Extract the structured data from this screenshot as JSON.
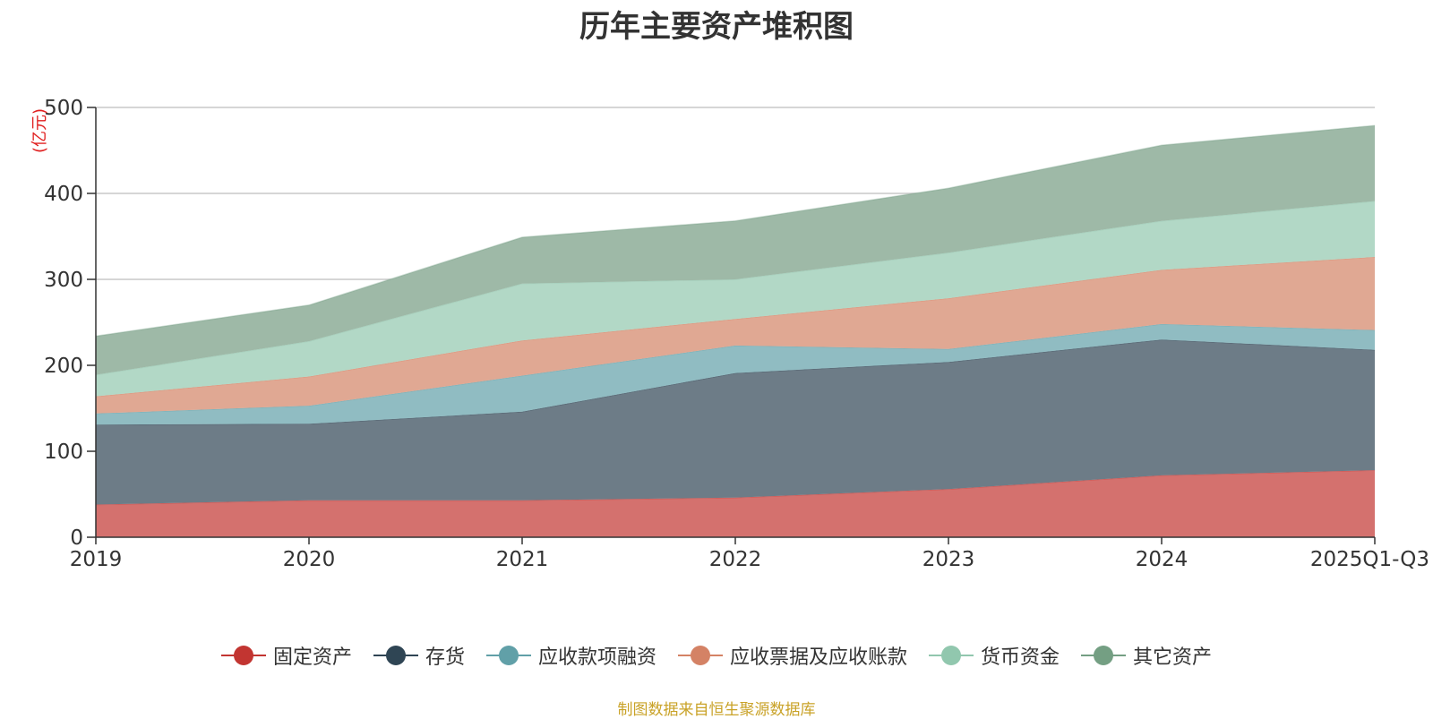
{
  "chart_data": {
    "type": "area",
    "stacked": true,
    "title": "历年主要资产堆积图",
    "unit_label": "(亿元)",
    "categories": [
      "2019",
      "2020",
      "2021",
      "2022",
      "2023",
      "2024",
      "2025Q1-Q3"
    ],
    "ylim": [
      0,
      500
    ],
    "yticks": [
      0,
      100,
      200,
      300,
      400,
      500
    ],
    "grid": true,
    "legend_position": "bottom",
    "series": [
      {
        "name": "固定资产",
        "values": [
          38,
          43,
          43,
          46,
          56,
          72,
          78
        ],
        "color": "#c23531",
        "fill": "#d4716e"
      },
      {
        "name": "存货",
        "values": [
          93,
          89,
          103,
          145,
          148,
          158,
          140
        ],
        "color": "#2f4554",
        "fill": "#6d7c87"
      },
      {
        "name": "应收款项融资",
        "values": [
          13,
          21,
          42,
          32,
          15,
          18,
          23
        ],
        "color": "#61a0a8",
        "fill": "#90bcc2"
      },
      {
        "name": "应收票据及应收账款",
        "values": [
          20,
          34,
          41,
          31,
          59,
          63,
          85
        ],
        "color": "#d48265",
        "fill": "#e0a893"
      },
      {
        "name": "货币资金",
        "values": [
          25,
          41,
          66,
          46,
          53,
          57,
          65
        ],
        "color": "#91c7ae",
        "fill": "#b2d8c6"
      },
      {
        "name": "其它资产",
        "values": [
          45,
          42,
          54,
          68,
          75,
          88,
          88
        ],
        "color": "#749f83",
        "fill": "#9eb9a7"
      }
    ]
  },
  "source_note": "制图数据来自恒生聚源数据库"
}
